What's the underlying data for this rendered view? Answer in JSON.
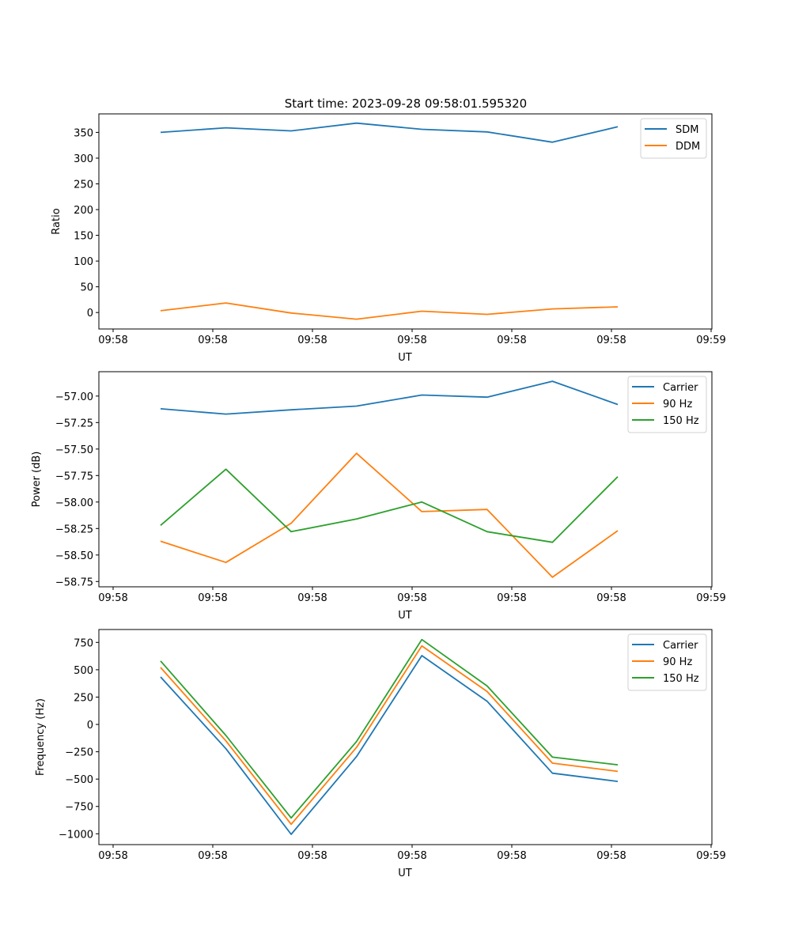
{
  "title": "Start time: 2023-09-28 09:58:01.595320",
  "chart_data": [
    {
      "type": "line",
      "xlabel": "UT",
      "ylabel": "Ratio",
      "x_tick_labels": [
        "09:58",
        "09:58",
        "09:58",
        "09:58",
        "09:58",
        "09:58",
        "09:59"
      ],
      "y_ticks": [
        0,
        50,
        100,
        150,
        200,
        250,
        300,
        350
      ],
      "y_tick_labels": [
        "0",
        "50",
        "100",
        "150",
        "200",
        "250",
        "300",
        "350"
      ],
      "ylim": [
        -32,
        386
      ],
      "legend": "top-right",
      "series": [
        {
          "name": "SDM",
          "color": "#1f77b4",
          "values": [
            350,
            359,
            353,
            368,
            356,
            351,
            331,
            361
          ]
        },
        {
          "name": "DDM",
          "color": "#ff7f0e",
          "values": [
            3.5,
            18.5,
            -1,
            -13,
            2.6,
            -3.5,
            7,
            11
          ]
        }
      ]
    },
    {
      "type": "line",
      "xlabel": "UT",
      "ylabel": "Power (dB)",
      "x_tick_labels": [
        "09:58",
        "09:58",
        "09:58",
        "09:58",
        "09:58",
        "09:58",
        "09:59"
      ],
      "y_ticks": [
        -57.0,
        -57.25,
        -57.5,
        -57.75,
        -58.0,
        -58.25,
        -58.5,
        -58.75
      ],
      "y_tick_labels": [
        "−57.00",
        "−57.25",
        "−57.50",
        "−57.75",
        "−58.00",
        "−58.25",
        "−58.50",
        "−58.75"
      ],
      "ylim": [
        -58.8,
        -56.77
      ],
      "legend": "top-right",
      "series": [
        {
          "name": "Carrier",
          "color": "#1f77b4",
          "values": [
            -57.12,
            -57.17,
            -57.13,
            -57.095,
            -56.99,
            -57.01,
            -56.86,
            -57.08
          ]
        },
        {
          "name": "90 Hz",
          "color": "#ff7f0e",
          "values": [
            -58.37,
            -58.57,
            -58.2,
            -57.54,
            -58.09,
            -58.07,
            -58.71,
            -58.27
          ]
        },
        {
          "name": "150 Hz",
          "color": "#2ca02c",
          "values": [
            -58.22,
            -57.69,
            -58.28,
            -58.16,
            -58.0,
            -58.28,
            -58.38,
            -57.76
          ]
        }
      ]
    },
    {
      "type": "line",
      "xlabel": "UT",
      "ylabel": "Frequency (Hz)",
      "x_tick_labels": [
        "09:58",
        "09:58",
        "09:58",
        "09:58",
        "09:58",
        "09:58",
        "09:59"
      ],
      "y_ticks": [
        -1000,
        -750,
        -500,
        -250,
        0,
        250,
        500,
        750
      ],
      "y_tick_labels": [
        "−1000",
        "−750",
        "−500",
        "−250",
        "0",
        "250",
        "500",
        "750"
      ],
      "ylim": [
        -1099,
        868
      ],
      "legend": "top-right",
      "series": [
        {
          "name": "Carrier",
          "color": "#1f77b4",
          "values": [
            434,
            -222,
            -1005,
            -294,
            629,
            212,
            -446,
            -521
          ]
        },
        {
          "name": "90 Hz",
          "color": "#ff7f0e",
          "values": [
            521,
            -150,
            -913,
            -210,
            718,
            301,
            -354,
            -429
          ]
        },
        {
          "name": "150 Hz",
          "color": "#2ca02c",
          "values": [
            580,
            -101,
            -855,
            -157,
            776,
            352,
            -299,
            -369
          ]
        }
      ]
    }
  ]
}
